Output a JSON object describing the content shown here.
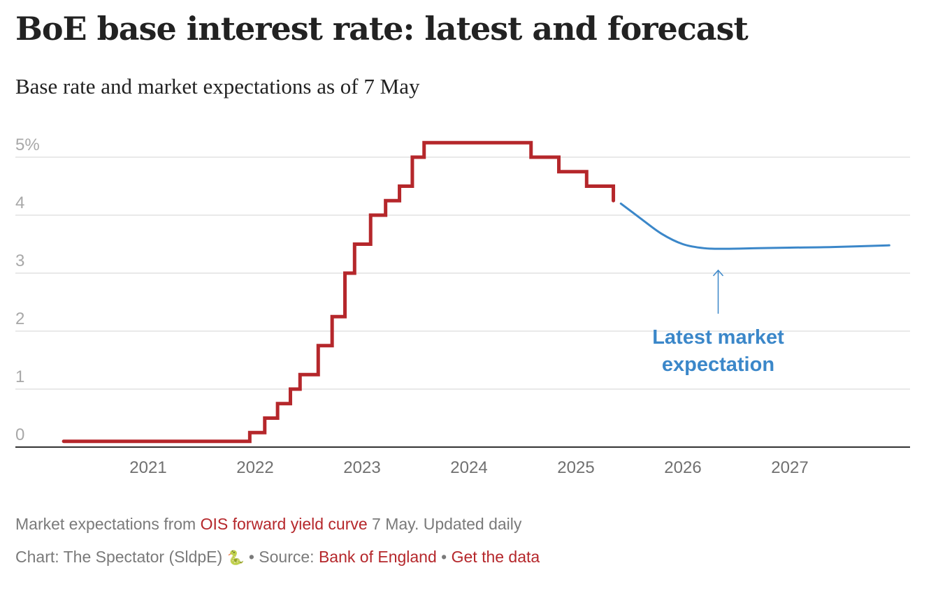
{
  "title": "BoE base interest rate: latest and forecast",
  "subtitle": "Base rate and market expectations as of 7 May",
  "footer": {
    "line1_prefix": "Market expectations from ",
    "line1_link": "OIS forward yield curve",
    "line1_suffix": " 7 May. Updated daily",
    "line2_prefix": "Chart: The Spectator (SldpE) ",
    "line2_icon": "🐍",
    "line2_source_label": " • Source: ",
    "line2_source_link": "Bank of England",
    "line2_sep": " • ",
    "line2_data_link": "Get the data"
  },
  "colors": {
    "base_rate": "#b5272b",
    "forecast": "#3b87c9",
    "grid": "#e2e2e2",
    "axis": "#333333",
    "link": "#b5272b"
  },
  "chart_data": {
    "type": "line",
    "title": "BoE base interest rate: latest and forecast",
    "subtitle": "Base rate and market expectations as of 7 May",
    "xlabel": "",
    "ylabel": "",
    "ylim": [
      0,
      5.5
    ],
    "xlim": [
      2020.0,
      2028.2
    ],
    "yticks": [
      0,
      1,
      2,
      3,
      4,
      5
    ],
    "ytick_labels": [
      "0",
      "1",
      "2",
      "3",
      "4",
      "5%"
    ],
    "xticks": [
      2021,
      2022,
      2023,
      2024,
      2025,
      2026,
      2027
    ],
    "xtick_labels": [
      "2021",
      "2022",
      "2023",
      "2024",
      "2025",
      "2026",
      "2027"
    ],
    "grid": true,
    "legend": "none",
    "series": [
      {
        "name": "Base rate",
        "style": "step",
        "x": [
          2020.21,
          2021.95,
          2022.09,
          2022.21,
          2022.33,
          2022.42,
          2022.59,
          2022.72,
          2022.84,
          2022.93,
          2023.08,
          2023.22,
          2023.35,
          2023.47,
          2023.58,
          2024.58,
          2024.84,
          2025.1,
          2025.35
        ],
        "y": [
          0.1,
          0.25,
          0.5,
          0.75,
          1.0,
          1.25,
          1.75,
          2.25,
          3.0,
          3.5,
          4.0,
          4.25,
          4.5,
          5.0,
          5.25,
          5.0,
          4.75,
          4.5,
          4.25
        ]
      },
      {
        "name": "Latest market expectation",
        "style": "smooth",
        "x": [
          2025.42,
          2025.6,
          2025.8,
          2026.0,
          2026.2,
          2026.4,
          2026.7,
          2027.0,
          2027.4,
          2027.93
        ],
        "y": [
          4.2,
          3.95,
          3.68,
          3.5,
          3.43,
          3.42,
          3.43,
          3.44,
          3.45,
          3.48
        ]
      }
    ],
    "annotations": [
      {
        "text_lines": [
          "Latest market",
          "expectation"
        ],
        "points_to": {
          "x": 2026.33,
          "y": 3.05
        },
        "arrow": "up"
      }
    ]
  }
}
